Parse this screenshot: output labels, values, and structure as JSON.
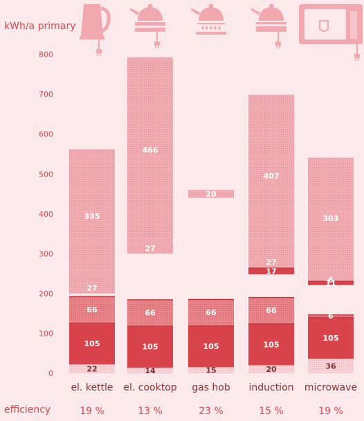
{
  "chart_data": {
    "type": "bar",
    "ylabel": "kWh/a primary",
    "ylim": [
      0,
      800
    ],
    "yticks": [
      0,
      100,
      200,
      300,
      400,
      500,
      600,
      700,
      800
    ],
    "efficiency_label": "efficiency",
    "colors": {
      "text": "#d04a4f",
      "dark_red": "#d9434b",
      "medium_red": "#e7858a",
      "light_red": "#f0adb3",
      "pale": "#f7d4d8",
      "icon": "#f1a8af",
      "background": "#fbe9ec"
    },
    "appliances": [
      {
        "name": "el. kettle",
        "icon": "kettle-icon",
        "efficiency": "19 %",
        "segments": [
          {
            "from": 0,
            "to": 22,
            "label": "22",
            "style": "pale"
          },
          {
            "from": 22,
            "to": 127,
            "label": "105",
            "style": "dark"
          },
          {
            "from": 127,
            "to": 193,
            "label": "66",
            "style": "medium"
          },
          {
            "from": 200,
            "to": 227,
            "label": "27",
            "style": "light"
          },
          {
            "from": 227,
            "to": 562,
            "label": "335",
            "style": "light"
          }
        ]
      },
      {
        "name": "el. cooktop",
        "icon": "cooktop-pot-icon",
        "efficiency": "13 %",
        "segments": [
          {
            "from": 0,
            "to": 14,
            "label": "14",
            "style": "pale"
          },
          {
            "from": 14,
            "to": 119,
            "label": "105",
            "style": "dark"
          },
          {
            "from": 119,
            "to": 185,
            "label": "66",
            "style": "medium"
          },
          {
            "from": 300,
            "to": 327,
            "label": "27",
            "style": "light"
          },
          {
            "from": 327,
            "to": 793,
            "label": "466",
            "style": "light"
          }
        ]
      },
      {
        "name": "gas hob",
        "icon": "gas-hob-pot-icon",
        "efficiency": "23 %",
        "segments": [
          {
            "from": 0,
            "to": 15,
            "label": "15",
            "style": "pale"
          },
          {
            "from": 15,
            "to": 120,
            "label": "105",
            "style": "dark"
          },
          {
            "from": 120,
            "to": 186,
            "label": "66",
            "style": "medium"
          },
          {
            "from": 440,
            "to": 460,
            "label": "20",
            "style": "light"
          }
        ]
      },
      {
        "name": "induction",
        "icon": "induction-pot-icon",
        "efficiency": "15 %",
        "segments": [
          {
            "from": 0,
            "to": 20,
            "label": "20",
            "style": "pale"
          },
          {
            "from": 20,
            "to": 125,
            "label": "105",
            "style": "dark"
          },
          {
            "from": 125,
            "to": 191,
            "label": "66",
            "style": "medium"
          },
          {
            "from": 248,
            "to": 265,
            "label": "17",
            "style": "dark"
          },
          {
            "from": 265,
            "to": 292,
            "label": "27",
            "style": "light"
          },
          {
            "from": 292,
            "to": 699,
            "label": "407",
            "style": "light"
          }
        ]
      },
      {
        "name": "microwave",
        "icon": "microwave-icon",
        "efficiency": "19 %",
        "segments": [
          {
            "from": 0,
            "to": 36,
            "label": "36",
            "style": "pale"
          },
          {
            "from": 36,
            "to": 141,
            "label": "105",
            "style": "dark"
          },
          {
            "from": 141,
            "to": 147,
            "label": "6",
            "style": "medium"
          },
          {
            "from": 221,
            "to": 232,
            "label": "11",
            "style": "dark"
          },
          {
            "from": 232,
            "to": 238,
            "label": "6",
            "style": "light"
          },
          {
            "from": 238,
            "to": 541,
            "label": "303",
            "style": "light"
          }
        ]
      }
    ]
  }
}
